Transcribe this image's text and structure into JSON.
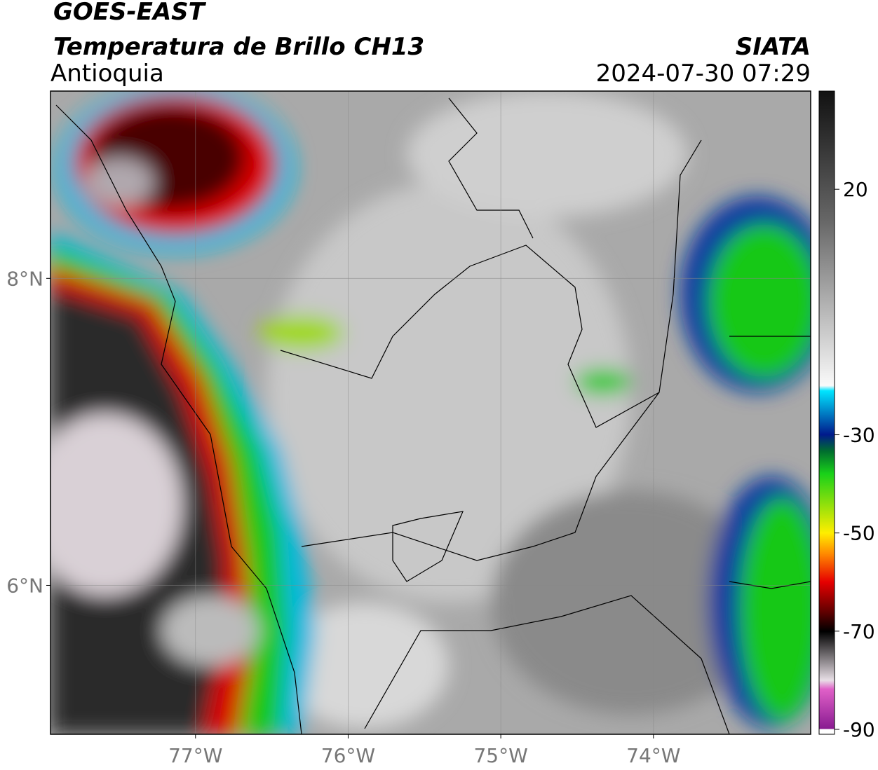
{
  "header": {
    "title": "GOES-EAST",
    "subtitle": "Temperatura de Brillo CH13",
    "region": "Antioquia",
    "source": "SIATA",
    "datetime": "2024-07-30 07:29"
  },
  "map": {
    "xlim": [
      -77.95,
      -72.97
    ],
    "ylim": [
      5.03,
      9.22
    ],
    "xticks": [
      {
        "value": -77,
        "label": "77°W"
      },
      {
        "value": -76,
        "label": "76°W"
      },
      {
        "value": -75,
        "label": "75°W"
      },
      {
        "value": -74,
        "label": "74°W"
      }
    ],
    "yticks": [
      {
        "value": 8,
        "label": "8°N"
      },
      {
        "value": 6,
        "label": "6°N"
      }
    ]
  },
  "colorbar": {
    "lim": [
      -91,
      40
    ],
    "ticks": [
      20,
      -30,
      -50,
      -70,
      -90
    ]
  }
}
